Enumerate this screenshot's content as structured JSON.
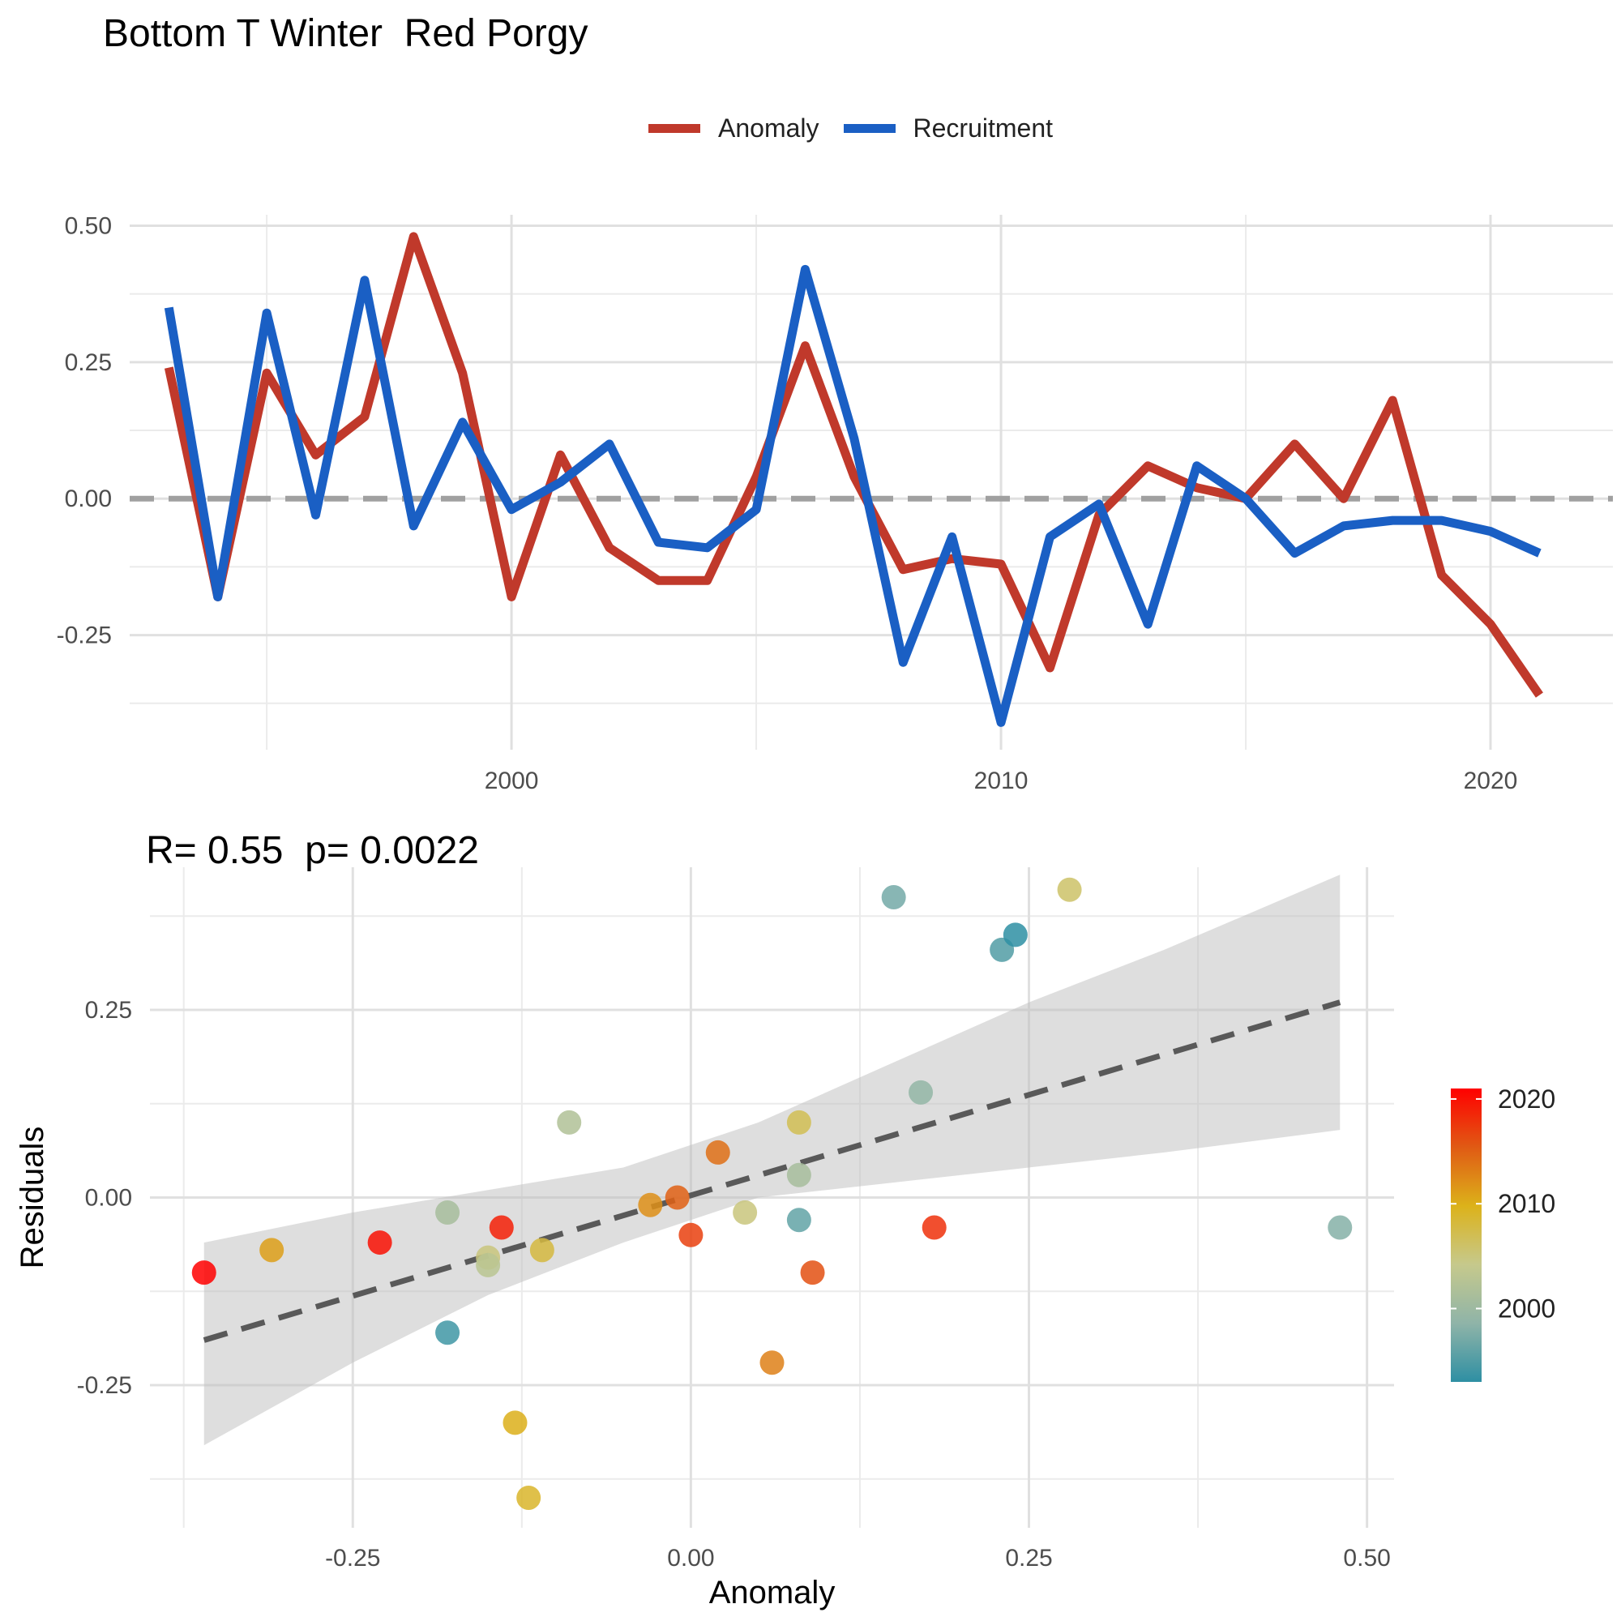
{
  "title": "Bottom T Winter  Red Porgy",
  "top_legend": [
    {
      "label": "Anomaly",
      "color": "#c0392b"
    },
    {
      "label": "Recruitment",
      "color": "#1a5fc4"
    }
  ],
  "scatter_title": "R= 0.55  p= 0.0022",
  "colorbar": {
    "ticks": [
      "2020",
      "2010",
      "2000"
    ],
    "colors": [
      "#ff0000",
      "#e05a14",
      "#dcb21a",
      "#c6c98c",
      "#8fb4a8",
      "#2e8fa3"
    ]
  },
  "chart_data": [
    {
      "type": "line",
      "x": [
        1993,
        1994,
        1995,
        1996,
        1997,
        1998,
        1999,
        2000,
        2001,
        2002,
        2003,
        2004,
        2005,
        2006,
        2007,
        2008,
        2009,
        2010,
        2011,
        2012,
        2013,
        2014,
        2015,
        2016,
        2017,
        2018,
        2019,
        2020,
        2021
      ],
      "series": [
        {
          "name": "Anomaly",
          "color": "#c0392b",
          "values": [
            0.24,
            -0.18,
            0.23,
            0.08,
            0.15,
            0.48,
            0.23,
            -0.18,
            0.08,
            -0.09,
            -0.15,
            -0.15,
            0.04,
            0.28,
            0.04,
            -0.13,
            -0.11,
            -0.12,
            -0.31,
            -0.03,
            0.06,
            0.02,
            0.0,
            0.1,
            0.0,
            0.18,
            -0.14,
            -0.23,
            -0.36
          ]
        },
        {
          "name": "Recruitment",
          "color": "#1a5fc4",
          "values": [
            0.35,
            -0.18,
            0.34,
            -0.03,
            0.4,
            -0.05,
            0.14,
            -0.02,
            0.03,
            0.1,
            -0.08,
            -0.09,
            -0.02,
            0.42,
            0.11,
            -0.3,
            -0.07,
            -0.41,
            -0.07,
            -0.01,
            -0.23,
            0.06,
            0.0,
            -0.1,
            -0.05,
            -0.04,
            -0.04,
            -0.06,
            -0.1
          ]
        }
      ],
      "reference_line": 0,
      "xlim": [
        1992.2,
        2022.5
      ],
      "ylim": [
        -0.46,
        0.52
      ],
      "xticks": [
        2000,
        2010,
        2020
      ],
      "yticks": [
        -0.25,
        0.0,
        0.25,
        0.5
      ],
      "ytick_labels": [
        "-0.25",
        "0.00",
        "0.25",
        "0.50"
      ],
      "xlabel": "",
      "ylabel": "",
      "grid": true
    },
    {
      "type": "scatter",
      "title": "R= 0.55  p= 0.0022",
      "xlabel": "Anomaly",
      "ylabel": "Residuals",
      "xlim": [
        -0.4,
        0.52
      ],
      "ylim": [
        -0.44,
        0.44
      ],
      "xticks": [
        -0.25,
        0.0,
        0.25,
        0.5
      ],
      "xtick_labels": [
        "-0.25",
        "0.00",
        "0.25",
        "0.50"
      ],
      "yticks": [
        -0.25,
        0.0,
        0.25
      ],
      "ytick_labels": [
        "-0.25",
        "0.00",
        "0.25"
      ],
      "points": [
        {
          "x": -0.36,
          "y": -0.1,
          "year": 2021
        },
        {
          "x": -0.31,
          "y": -0.07,
          "year": 2011
        },
        {
          "x": -0.23,
          "y": -0.06,
          "year": 2020
        },
        {
          "x": -0.18,
          "y": -0.02,
          "year": 2001
        },
        {
          "x": -0.18,
          "y": -0.18,
          "year": 1994
        },
        {
          "x": -0.15,
          "y": -0.08,
          "year": 2005
        },
        {
          "x": -0.15,
          "y": -0.09,
          "year": 2003
        },
        {
          "x": -0.14,
          "y": -0.04,
          "year": 2019
        },
        {
          "x": -0.13,
          "y": -0.3,
          "year": 2010
        },
        {
          "x": -0.12,
          "y": -0.4,
          "year": 2009
        },
        {
          "x": -0.11,
          "y": -0.07,
          "year": 2008
        },
        {
          "x": -0.09,
          "y": 0.1,
          "year": 2002
        },
        {
          "x": -0.03,
          "y": -0.01,
          "year": 2012
        },
        {
          "x": -0.01,
          "y": 0.0,
          "year": 2015
        },
        {
          "x": 0.0,
          "y": -0.05,
          "year": 2017
        },
        {
          "x": 0.02,
          "y": 0.06,
          "year": 2014
        },
        {
          "x": 0.04,
          "y": -0.02,
          "year": 2005
        },
        {
          "x": 0.06,
          "y": -0.22,
          "year": 2013
        },
        {
          "x": 0.08,
          "y": 0.1,
          "year": 2007
        },
        {
          "x": 0.08,
          "y": 0.03,
          "year": 2001
        },
        {
          "x": 0.08,
          "y": -0.03,
          "year": 1996
        },
        {
          "x": 0.09,
          "y": -0.1,
          "year": 2016
        },
        {
          "x": 0.15,
          "y": 0.4,
          "year": 1997
        },
        {
          "x": 0.17,
          "y": 0.14,
          "year": 1999
        },
        {
          "x": 0.18,
          "y": -0.04,
          "year": 2018
        },
        {
          "x": 0.23,
          "y": 0.33,
          "year": 1995
        },
        {
          "x": 0.24,
          "y": 0.35,
          "year": 1993
        },
        {
          "x": 0.28,
          "y": 0.41,
          "year": 2006
        },
        {
          "x": 0.48,
          "y": -0.04,
          "year": 1998
        }
      ],
      "fit_line": {
        "x": [
          -0.36,
          0.48
        ],
        "y": [
          -0.19,
          0.26
        ]
      },
      "confidence_band": {
        "x": [
          -0.36,
          -0.25,
          -0.15,
          -0.05,
          0.05,
          0.15,
          0.25,
          0.35,
          0.48
        ],
        "upper": [
          -0.06,
          -0.02,
          0.01,
          0.04,
          0.1,
          0.18,
          0.26,
          0.33,
          0.43
        ],
        "lower": [
          -0.33,
          -0.22,
          -0.13,
          -0.06,
          0.0,
          0.02,
          0.04,
          0.06,
          0.09
        ]
      },
      "colorscale": {
        "min_year": 1993,
        "max_year": 2021
      },
      "grid": true
    }
  ]
}
